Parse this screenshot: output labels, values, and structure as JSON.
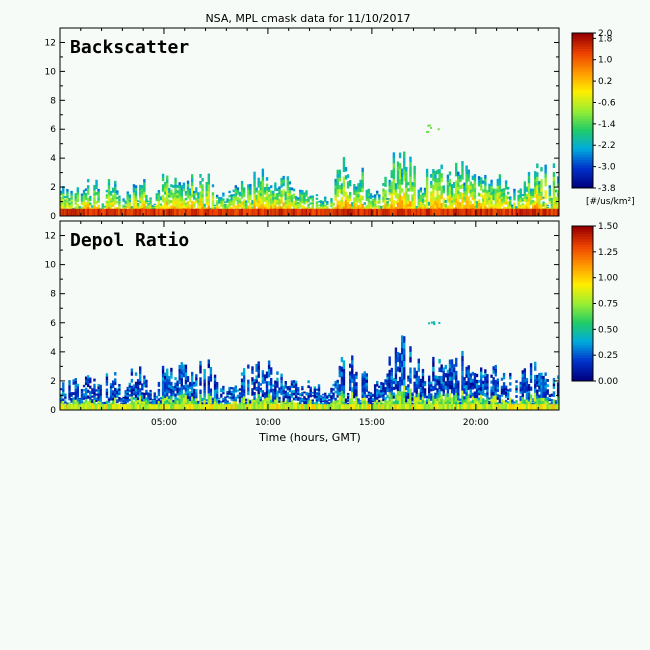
{
  "title": "NSA, MPL cmask data for 11/10/2017",
  "xaxis": {
    "label": "Time (hours, GMT)",
    "range": [
      0,
      24
    ],
    "ticks": [
      5,
      10,
      15,
      20
    ],
    "tick_labels": [
      "05:00",
      "10:00",
      "15:00",
      "20:00"
    ]
  },
  "yaxis": {
    "range": [
      0,
      13
    ],
    "ticks": [
      0,
      2,
      4,
      6,
      8,
      10,
      12
    ],
    "tick_labels": [
      "0",
      "2",
      "4",
      "6",
      "8",
      "10",
      "12"
    ]
  },
  "panels": [
    {
      "label": "Backscatter",
      "colorbar": {
        "min": -3.8,
        "max": 2.0,
        "tick_values": [
          -3.8,
          -3.0,
          -2.2,
          -1.4,
          -0.6,
          0.2,
          1.0,
          1.8,
          2.0
        ],
        "tick_labels": [
          "-3.8",
          "-3.0",
          "-2.2",
          "-1.4",
          "-0.6",
          "0.2",
          "1.0",
          "1.8",
          "2.0"
        ],
        "units": "[#/us/km²]"
      }
    },
    {
      "label": "Depol Ratio",
      "colorbar": {
        "min": 0.0,
        "max": 1.5,
        "tick_values": [
          0.0,
          0.25,
          0.5,
          0.75,
          1.0,
          1.25,
          1.5
        ],
        "tick_labels": [
          "0.00",
          "0.25",
          "0.50",
          "0.75",
          "1.00",
          "1.25",
          "1.50"
        ],
        "units": ""
      }
    }
  ],
  "colors": {
    "background": "#f6fbf8",
    "colormap": [
      "#000080",
      "#0033cc",
      "#00aadd",
      "#22cc66",
      "#99ee33",
      "#ffee00",
      "#ff9900",
      "#ee4400",
      "#990000"
    ]
  },
  "chart_data": [
    {
      "type": "heatmap",
      "title": "Backscatter",
      "xlabel": "Time (hours, GMT)",
      "ylabel": "",
      "xlim": [
        0,
        24
      ],
      "ylim": [
        0,
        13
      ],
      "zlim": [
        -3.8,
        2.0
      ],
      "z_units": "[#/us/km²]",
      "cloud_tops_km": [
        [
          0.0,
          1.9
        ],
        [
          1.0,
          2.3
        ],
        [
          2.0,
          2.4
        ],
        [
          2.7,
          2.5
        ],
        [
          3.0,
          1.2
        ],
        [
          3.5,
          3.2
        ],
        [
          4.0,
          2.6
        ],
        [
          4.5,
          1.0
        ],
        [
          5.0,
          3.3
        ],
        [
          5.5,
          2.8
        ],
        [
          6.0,
          3.5
        ],
        [
          6.5,
          2.6
        ],
        [
          7.0,
          3.6
        ],
        [
          7.5,
          2.5
        ],
        [
          8.0,
          1.6
        ],
        [
          8.5,
          2.0
        ],
        [
          9.0,
          2.9
        ],
        [
          9.5,
          3.2
        ],
        [
          10.0,
          3.4
        ],
        [
          10.5,
          2.5
        ],
        [
          11.0,
          2.7
        ],
        [
          11.5,
          1.7
        ],
        [
          12.0,
          2.2
        ],
        [
          12.5,
          1.6
        ],
        [
          13.0,
          1.2
        ],
        [
          13.5,
          3.7
        ],
        [
          14.0,
          3.9
        ],
        [
          14.5,
          3.3
        ],
        [
          15.0,
          1.4
        ],
        [
          15.5,
          2.6
        ],
        [
          16.0,
          4.1
        ],
        [
          16.5,
          4.8
        ],
        [
          17.0,
          3.8
        ],
        [
          17.5,
          2.7
        ],
        [
          18.0,
          3.8
        ],
        [
          18.5,
          3.1
        ],
        [
          19.0,
          3.4
        ],
        [
          19.5,
          3.9
        ],
        [
          20.0,
          2.9
        ],
        [
          20.5,
          3.6
        ],
        [
          21.0,
          3.2
        ],
        [
          21.5,
          2.6
        ],
        [
          22.0,
          2.1
        ],
        [
          22.5,
          2.9
        ],
        [
          23.0,
          3.6
        ],
        [
          24.0,
          3.3
        ]
      ],
      "surface_band_km": [
        0,
        0.5
      ],
      "elevated_features_km": [
        {
          "time": 17.9,
          "bottom": 5.8,
          "top": 6.4
        }
      ]
    },
    {
      "type": "heatmap",
      "title": "Depol Ratio",
      "xlabel": "Time (hours, GMT)",
      "ylabel": "",
      "xlim": [
        0,
        24
      ],
      "ylim": [
        0,
        13
      ],
      "zlim": [
        0.0,
        1.5
      ],
      "z_units": "",
      "cloud_tops_km": [
        [
          0.0,
          1.9
        ],
        [
          1.0,
          2.3
        ],
        [
          2.0,
          2.4
        ],
        [
          2.7,
          2.5
        ],
        [
          3.0,
          1.2
        ],
        [
          3.5,
          3.2
        ],
        [
          4.0,
          2.6
        ],
        [
          4.5,
          1.0
        ],
        [
          5.0,
          3.3
        ],
        [
          5.5,
          2.8
        ],
        [
          6.0,
          3.5
        ],
        [
          6.5,
          2.6
        ],
        [
          7.0,
          3.6
        ],
        [
          7.5,
          2.5
        ],
        [
          8.0,
          1.6
        ],
        [
          8.5,
          2.0
        ],
        [
          9.0,
          2.9
        ],
        [
          9.5,
          3.2
        ],
        [
          10.0,
          3.4
        ],
        [
          10.5,
          2.5
        ],
        [
          11.0,
          2.7
        ],
        [
          11.5,
          1.7
        ],
        [
          12.0,
          2.2
        ],
        [
          12.5,
          1.6
        ],
        [
          13.0,
          1.2
        ],
        [
          13.5,
          3.7
        ],
        [
          14.0,
          3.9
        ],
        [
          14.5,
          3.3
        ],
        [
          15.0,
          1.4
        ],
        [
          15.5,
          2.6
        ],
        [
          16.0,
          4.1
        ],
        [
          16.5,
          4.8
        ],
        [
          17.0,
          3.8
        ],
        [
          17.5,
          2.7
        ],
        [
          18.0,
          3.8
        ],
        [
          18.5,
          3.1
        ],
        [
          19.0,
          3.4
        ],
        [
          19.5,
          3.9
        ],
        [
          20.0,
          2.9
        ],
        [
          20.5,
          3.6
        ],
        [
          21.0,
          3.2
        ],
        [
          21.5,
          2.6
        ],
        [
          22.0,
          2.1
        ],
        [
          22.5,
          2.9
        ],
        [
          23.0,
          3.6
        ],
        [
          24.0,
          3.3
        ]
      ],
      "surface_band_km": [
        0,
        0.4
      ],
      "elevated_features_km": [
        {
          "time": 17.9,
          "bottom": 5.8,
          "top": 6.4
        }
      ]
    }
  ]
}
